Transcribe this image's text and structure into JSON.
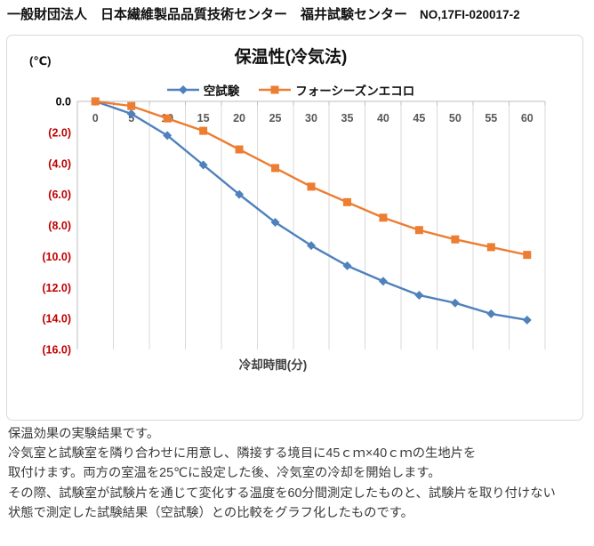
{
  "header": {
    "org_line": "一般財団法人　日本繊維製品品質技術センター　福井試験センター",
    "report_no": "NO,17FI-020017-2"
  },
  "chart_data": {
    "type": "line",
    "title": "保温性(冷気法)",
    "y_unit_label": "(℃)",
    "xlabel": "冷却時間(分)",
    "x": [
      0,
      5,
      10,
      15,
      20,
      25,
      30,
      35,
      40,
      45,
      50,
      55,
      60
    ],
    "series": [
      {
        "name": "空試験",
        "color": "#4F81BD",
        "marker": "diamond",
        "values": [
          0.0,
          -0.8,
          -2.2,
          -4.1,
          -6.0,
          -7.8,
          -9.3,
          -10.6,
          -11.6,
          -12.5,
          -13.0,
          -13.7,
          -14.1
        ]
      },
      {
        "name": "フォーシーズンエコロ",
        "color": "#ED7D31",
        "marker": "square",
        "values": [
          0.0,
          -0.3,
          -1.1,
          -1.9,
          -3.1,
          -4.3,
          -5.5,
          -6.5,
          -7.5,
          -8.3,
          -8.9,
          -9.4,
          -9.9
        ]
      }
    ],
    "ylim": [
      -16,
      0
    ],
    "ytick_step": 2,
    "y_tick_labels": [
      "0.0",
      "(2.0)",
      "(4.0)",
      "(6.0)",
      "(8.0)",
      "(10.0)",
      "(12.0)",
      "(14.0)",
      "(16.0)"
    ],
    "zero_label_color": "#000000",
    "negative_label_color": "#C00000",
    "x_label_color": "#595959",
    "gridline_color": "#D9D9D9",
    "axis_color": "#BFBFBF",
    "grid": "vertical-only",
    "legend_position": "top-center"
  },
  "description": {
    "lines": [
      "保温効果の実験結果です。",
      "冷気室と試験室を隣り合わせに用意し、隣接する境目に45ｃｍ×40ｃｍの生地片を",
      "取付けます。両方の室温を25℃に設定した後、冷気室の冷却を開始します。",
      "その際、試験室が試験片を通じて変化する温度を60分間測定したものと、試験片を取り付けない",
      "状態で測定した試験結果（空試験）との比較をグラフ化したものです。"
    ]
  }
}
